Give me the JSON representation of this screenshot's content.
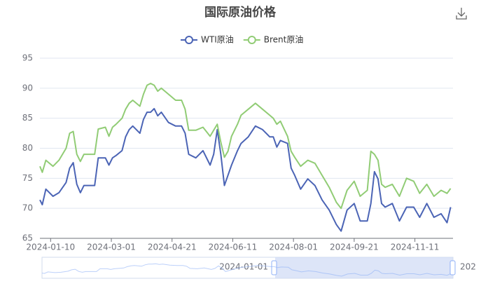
{
  "chart_data": {
    "type": "line",
    "title": "国际原油价格",
    "x": [
      "2024-01-01",
      "2024-01-03",
      "2024-01-06",
      "2024-01-12",
      "2024-01-17",
      "2024-01-23",
      "2024-01-26",
      "2024-01-29",
      "2024-02-01",
      "2024-02-04",
      "2024-02-07",
      "2024-02-13",
      "2024-02-16",
      "2024-02-19",
      "2024-02-25",
      "2024-02-28",
      "2024-03-02",
      "2024-03-05",
      "2024-03-10",
      "2024-03-13",
      "2024-03-16",
      "2024-03-19",
      "2024-03-25",
      "2024-03-28",
      "2024-03-31",
      "2024-04-03",
      "2024-04-06",
      "2024-04-09",
      "2024-04-12",
      "2024-04-18",
      "2024-04-24",
      "2024-04-29",
      "2024-05-02",
      "2024-05-05",
      "2024-05-11",
      "2024-05-17",
      "2024-05-23",
      "2024-05-26",
      "2024-05-29",
      "2024-06-01",
      "2024-06-04",
      "2024-06-07",
      "2024-06-10",
      "2024-06-15",
      "2024-06-18",
      "2024-06-24",
      "2024-06-30",
      "2024-07-06",
      "2024-07-12",
      "2024-07-15",
      "2024-07-18",
      "2024-07-21",
      "2024-07-27",
      "2024-07-30",
      "2024-08-02",
      "2024-08-07",
      "2024-08-13",
      "2024-08-19",
      "2024-08-25",
      "2024-08-31",
      "2024-09-06",
      "2024-09-10",
      "2024-09-15",
      "2024-09-21",
      "2024-09-26",
      "2024-10-02",
      "2024-10-05",
      "2024-10-08",
      "2024-10-11",
      "2024-10-14",
      "2024-10-17",
      "2024-10-23",
      "2024-10-29",
      "2024-11-04",
      "2024-11-10",
      "2024-11-15",
      "2024-11-21",
      "2024-11-27",
      "2024-12-03",
      "2024-12-08",
      "2024-12-11"
    ],
    "series": [
      {
        "name": "WTI原油",
        "color": "#4b64b5",
        "values": [
          71.4,
          70.6,
          73.2,
          72,
          72.6,
          74.3,
          76.7,
          77.6,
          74,
          72.6,
          73.8,
          73.8,
          73.8,
          78.4,
          78.4,
          77.2,
          78.4,
          78.8,
          79.6,
          81.9,
          83.1,
          83.7,
          82.5,
          84.8,
          86,
          86,
          86.6,
          85.4,
          86,
          84.3,
          83.7,
          83.7,
          82.5,
          79,
          78.4,
          79.6,
          77.2,
          79,
          83.1,
          79,
          73.8,
          75.5,
          77.2,
          79.6,
          80.8,
          81.9,
          83.7,
          83.1,
          81.9,
          81.9,
          80.2,
          81.3,
          80.8,
          76.7,
          75.5,
          73.2,
          74.9,
          73.8,
          71.4,
          69.7,
          67.3,
          66.2,
          69.7,
          70.8,
          67.9,
          67.9,
          70.8,
          76.1,
          74.9,
          70.8,
          70.2,
          70.8,
          67.9,
          70.2,
          70.2,
          68.5,
          70.8,
          68.5,
          69.1,
          67.6,
          70.2
        ]
      },
      {
        "name": "Brent原油",
        "color": "#91cc75",
        "values": [
          77,
          76,
          78,
          77,
          78,
          80,
          82.5,
          82.8,
          79,
          77.8,
          79,
          79,
          79,
          83.2,
          83.5,
          82,
          83.5,
          84,
          85,
          86.5,
          87.5,
          88,
          87,
          89,
          90.5,
          90.8,
          90.5,
          89.5,
          90,
          89,
          88,
          88,
          86.5,
          83,
          83,
          83.5,
          82,
          83,
          84,
          81,
          78.5,
          79.5,
          82,
          84,
          85.5,
          86.5,
          87.5,
          86.5,
          85.5,
          85,
          84,
          84.5,
          82,
          79.5,
          78.5,
          77,
          78,
          77.5,
          75.5,
          73.5,
          71,
          70,
          73,
          74.5,
          72,
          73,
          79.5,
          79,
          78,
          74,
          73.5,
          74,
          72,
          75,
          74.5,
          72.5,
          74,
          72,
          73,
          72.5,
          73.3
        ]
      }
    ],
    "xlim": [
      "2024-01-01",
      "2024-12-13"
    ],
    "xticks": [
      "2024-01-10",
      "2024-03-01",
      "2024-04-21",
      "2024-06-11",
      "2024-08-01",
      "2024-09-21",
      "2024-11-11"
    ],
    "ylim": [
      65,
      95
    ],
    "yticks": [
      65,
      70,
      75,
      80,
      85,
      90,
      95
    ],
    "grid": true,
    "data_zoom": {
      "start_label": "2024-01-01",
      "end_label": "202"
    }
  }
}
